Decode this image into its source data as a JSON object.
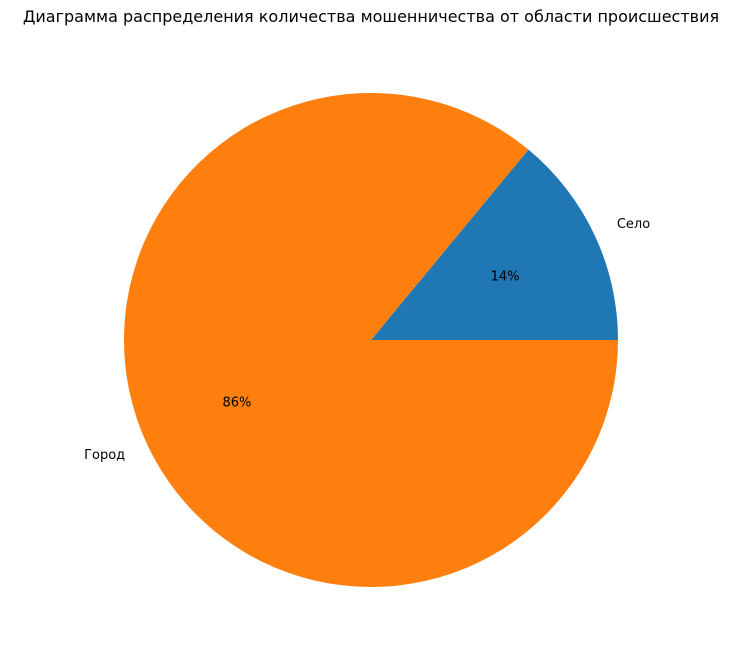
{
  "chart_data": {
    "type": "pie",
    "title": "Диаграмма распределения количества мошенничества от области происшествия",
    "categories": [
      "Село",
      "Город"
    ],
    "values": [
      14,
      86
    ],
    "percent_labels": [
      "14%",
      "86%"
    ],
    "colors": [
      "#1f77b4",
      "#ff7f0e"
    ],
    "legend": "none"
  }
}
